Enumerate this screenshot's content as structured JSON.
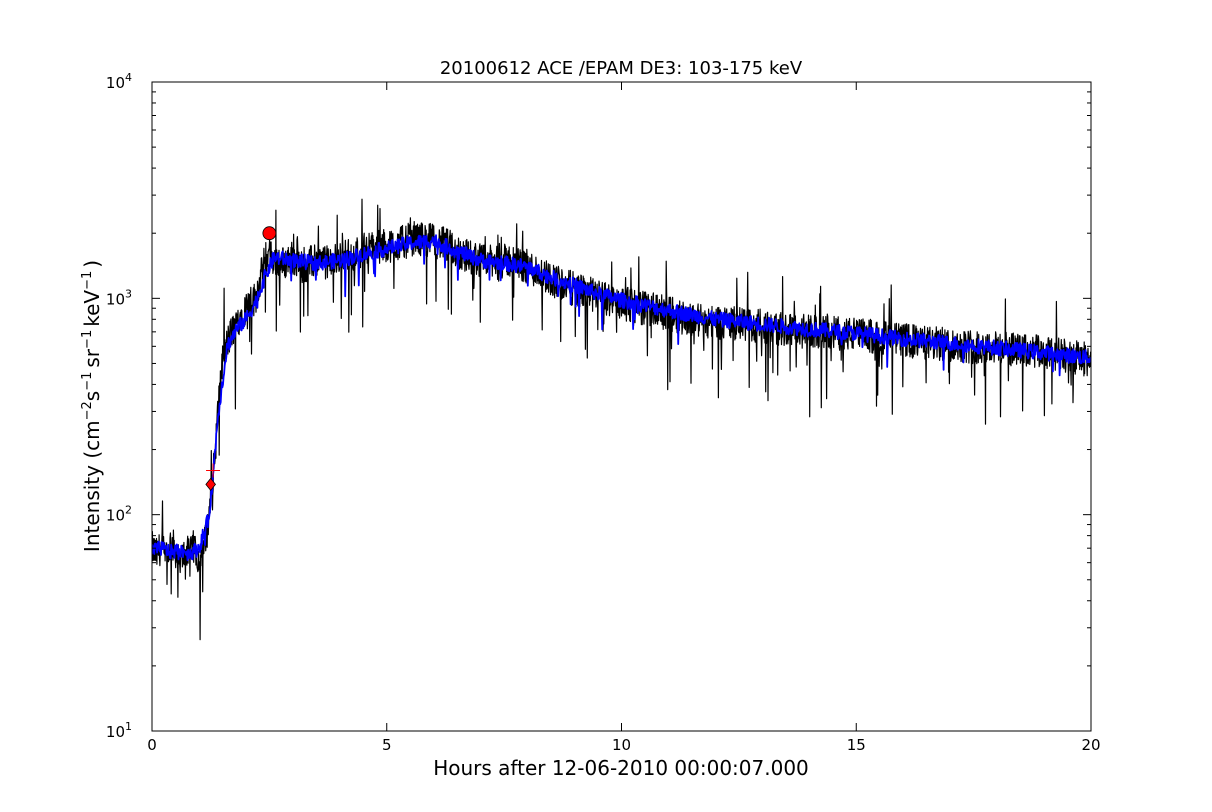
{
  "chart_data": {
    "type": "line",
    "title": "20100612 ACE /EPAM DE3: 103-175 keV",
    "xlabel": "Hours after 12-06-2010 00:00:07.000",
    "ylabel": "Intensity (cm⁻²s⁻¹sr⁻¹keV⁻¹)",
    "ylabel_parts": {
      "base": "Intensity (cm",
      "e1": "−2",
      "s": "s",
      "e2": "−1",
      "sr": "sr",
      "e3": "−1",
      "kev": "keV",
      "e4": "−1",
      "close": ")"
    },
    "xlim": [
      0,
      20
    ],
    "ylim": [
      10,
      10000
    ],
    "yscale": "log",
    "grid": false,
    "x_ticks": [
      "0",
      "5",
      "10",
      "15",
      "20"
    ],
    "y_ticks": [
      {
        "base": "10",
        "exp": "1"
      },
      {
        "base": "10",
        "exp": "2"
      },
      {
        "base": "10",
        "exp": "3"
      },
      {
        "base": "10",
        "exp": "4"
      }
    ],
    "series": [
      {
        "color": "#000000",
        "x": [
          0.0,
          0.1,
          0.2,
          0.3,
          0.4,
          0.5,
          0.6,
          0.7,
          0.8,
          0.9,
          1.0,
          1.1,
          1.2,
          1.25,
          1.3,
          1.35,
          1.4,
          1.5,
          1.6,
          1.7,
          1.8,
          1.9,
          2.0,
          2.1,
          2.2,
          2.3,
          2.4,
          2.5,
          2.6,
          2.8,
          3.0,
          3.2,
          3.5,
          3.8,
          4.0,
          4.3,
          4.6,
          5.0,
          5.3,
          5.6,
          6.0,
          6.3,
          6.6,
          7.0,
          7.3,
          7.6,
          8.0,
          8.3,
          8.6,
          9.0,
          9.3,
          9.6,
          10.0,
          10.5,
          11.0,
          11.5,
          12.0,
          12.5,
          13.0,
          13.5,
          14.0,
          14.5,
          15.0,
          15.5,
          16.0,
          16.5,
          17.0,
          17.5,
          18.0,
          18.5,
          19.0,
          19.5,
          20.0
        ],
        "y": [
          70,
          65,
          72,
          60,
          75,
          68,
          58,
          70,
          64,
          72,
          62,
          70,
          90,
          130,
          150,
          200,
          300,
          500,
          620,
          700,
          760,
          850,
          900,
          950,
          1000,
          1200,
          1500,
          1600,
          1500,
          1450,
          1550,
          1400,
          1500,
          1450,
          1550,
          1600,
          1700,
          1750,
          1800,
          1900,
          1850,
          1750,
          1600,
          1500,
          1450,
          1500,
          1400,
          1300,
          1200,
          1100,
          1050,
          1000,
          950,
          900,
          850,
          800,
          780,
          760,
          740,
          720,
          700,
          690,
          680,
          660,
          640,
          620,
          610,
          600,
          590,
          570,
          560,
          540,
          520
        ]
      },
      {
        "color": "#0000ff",
        "x": [
          0.0,
          0.2,
          0.4,
          0.6,
          0.8,
          1.0,
          1.2,
          1.3,
          1.4,
          1.6,
          1.8,
          2.0,
          2.2,
          2.4,
          2.6,
          3.0,
          3.5,
          4.0,
          4.5,
          5.0,
          5.5,
          6.0,
          6.5,
          7.0,
          7.5,
          8.0,
          8.5,
          9.0,
          9.5,
          10.0,
          11.0,
          12.0,
          13.0,
          14.0,
          15.0,
          16.0,
          17.0,
          18.0,
          19.0,
          20.0
        ],
        "y": [
          68,
          70,
          67,
          69,
          66,
          70,
          95,
          150,
          280,
          600,
          720,
          800,
          950,
          1250,
          1550,
          1500,
          1450,
          1500,
          1600,
          1700,
          1800,
          1850,
          1650,
          1500,
          1450,
          1400,
          1250,
          1150,
          1050,
          980,
          880,
          800,
          760,
          720,
          690,
          650,
          620,
          590,
          560,
          530
        ]
      }
    ],
    "markers": [
      {
        "shape": "circle",
        "color": "#ff0000",
        "x": 2.5,
        "y": 2000
      },
      {
        "shape": "diamond",
        "color": "#ff0000",
        "x": 1.25,
        "y": 138
      },
      {
        "shape": "plus",
        "color": "#ff0000",
        "x": 1.3,
        "y": 160
      }
    ]
  }
}
